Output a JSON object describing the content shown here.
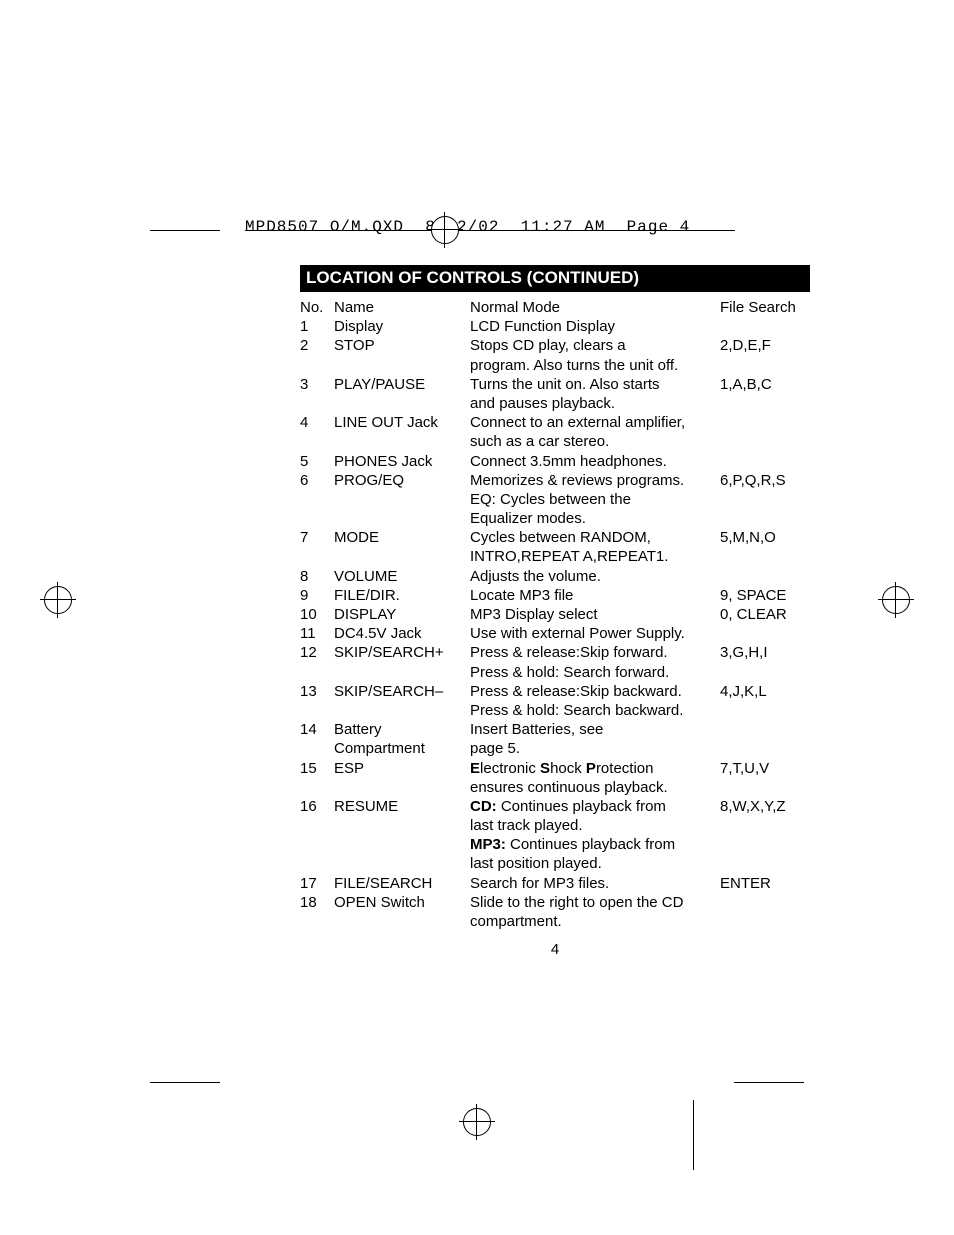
{
  "printer_header": "MPD8507 O/M.QXD  8/12/02  11:27 AM  Page 4",
  "section_title": "LOCATION OF CONTROLS (CONTINUED)",
  "columns": {
    "no": "No.",
    "name": "Name",
    "normal": "Normal Mode",
    "fs": "File Search"
  },
  "rows": [
    {
      "no": "1",
      "name": "Display",
      "desc": [
        "LCD Function Display"
      ],
      "fs": ""
    },
    {
      "no": "2",
      "name": "STOP",
      "desc": [
        "Stops CD play, clears a",
        "program. Also turns the unit off."
      ],
      "fs": "2,D,E,F"
    },
    {
      "no": "3",
      "name": "PLAY/PAUSE",
      "desc": [
        "Turns the unit on. Also starts",
        "and pauses playback."
      ],
      "fs": "1,A,B,C"
    },
    {
      "no": "4",
      "name": "LINE OUT Jack",
      "desc": [
        "Connect to an external amplifier,",
        "such as a car stereo."
      ],
      "fs": ""
    },
    {
      "no": "5",
      "name": "PHONES Jack",
      "desc": [
        "Connect 3.5mm headphones."
      ],
      "fs": ""
    },
    {
      "no": "6",
      "name": "PROG/EQ",
      "desc": [
        "Memorizes & reviews programs.",
        "EQ: Cycles between the",
        "Equalizer modes."
      ],
      "fs": "6,P,Q,R,S"
    },
    {
      "no": "7",
      "name": "MODE",
      "desc": [
        "Cycles between RANDOM,",
        "INTRO,REPEAT A,REPEAT1."
      ],
      "fs": "5,M,N,O"
    },
    {
      "no": "8",
      "name": "VOLUME",
      "desc": [
        "Adjusts the volume."
      ],
      "fs": ""
    },
    {
      "no": "9",
      "name": "FILE/DIR.",
      "desc": [
        "Locate MP3 file"
      ],
      "fs": "9, SPACE"
    },
    {
      "no": "10",
      "name": "DISPLAY",
      "desc": [
        "MP3 Display select"
      ],
      "fs": "0, CLEAR"
    },
    {
      "no": "11",
      "name": "DC4.5V Jack",
      "desc": [
        "Use with external Power Supply."
      ],
      "fs": ""
    },
    {
      "no": "12",
      "name": "SKIP/SEARCH+",
      "desc": [
        "Press & release:Skip forward.",
        "Press & hold: Search forward."
      ],
      "fs": "3,G,H,I"
    },
    {
      "no": "13",
      "name": "SKIP/SEARCH–",
      "desc": [
        "Press & release:Skip backward.",
        "Press & hold: Search backward."
      ],
      "fs": "4,J,K,L"
    },
    {
      "no": "14",
      "name": "Battery Compartment",
      "desc": [
        "Insert Batteries, see",
        "page 5."
      ],
      "fs": ""
    },
    {
      "no": "15",
      "name": "ESP",
      "desc": [
        "<b>E</b>lectronic <b>S</b>hock <b>P</b>rotection",
        "ensures continuous playback."
      ],
      "fs": "7,T,U,V"
    },
    {
      "no": "16",
      "name": "RESUME",
      "desc": [
        "<b>CD:</b> Continues playback from",
        "last track played.",
        "<b>MP3:</b> Continues playback from",
        "last position played."
      ],
      "fs": "8,W,X,Y,Z"
    },
    {
      "no": "17",
      "name": "FILE/SEARCH",
      "desc": [
        "Search for MP3 files."
      ],
      "fs": "ENTER"
    },
    {
      "no": "18",
      "name": "OPEN Switch",
      "desc": [
        "Slide to the right to open the CD",
        "compartment."
      ],
      "fs": ""
    }
  ],
  "page_number": "4",
  "colors": {
    "header_bg": "#000000",
    "header_fg": "#ffffff",
    "text": "#000000",
    "bg": "#ffffff"
  },
  "typography": {
    "body_fontsize": 15,
    "header_fontsize": 17,
    "mono_fontsize": 16
  }
}
